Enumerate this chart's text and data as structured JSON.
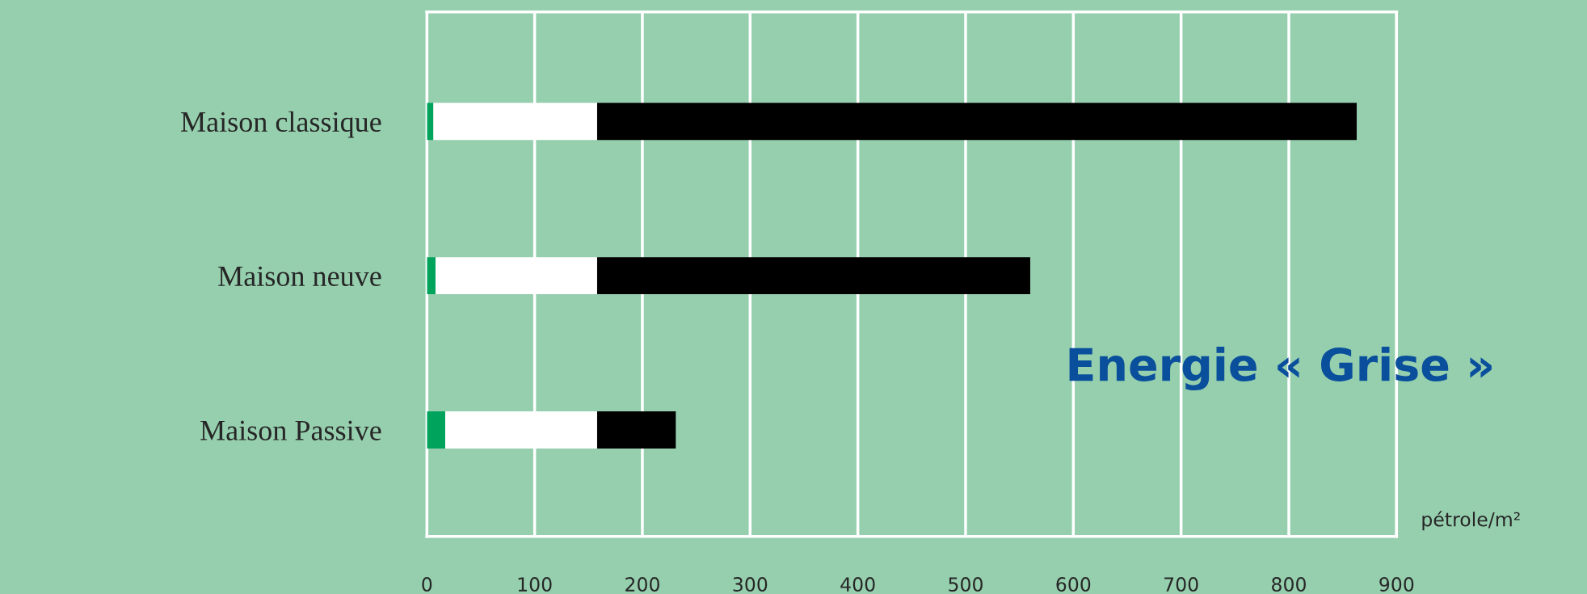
{
  "chart_data": {
    "type": "bar",
    "orientation": "horizontal",
    "stacked": true,
    "title": "Energie « Grise »",
    "xlabel": "pétrole/m²",
    "categories": [
      "Maison classique",
      "Maison neuve",
      "Maison Passive"
    ],
    "series": [
      {
        "color": "#00a35c",
        "values": [
          6,
          8,
          17
        ]
      },
      {
        "color": "#ffffff",
        "values": [
          152,
          150,
          141
        ]
      },
      {
        "color": "#000000",
        "values": [
          705,
          402,
          73
        ]
      }
    ],
    "xlim": [
      0,
      900
    ],
    "xticks": [
      0,
      100,
      200,
      300,
      400,
      500,
      600,
      700,
      800,
      900
    ],
    "grid": "x"
  }
}
